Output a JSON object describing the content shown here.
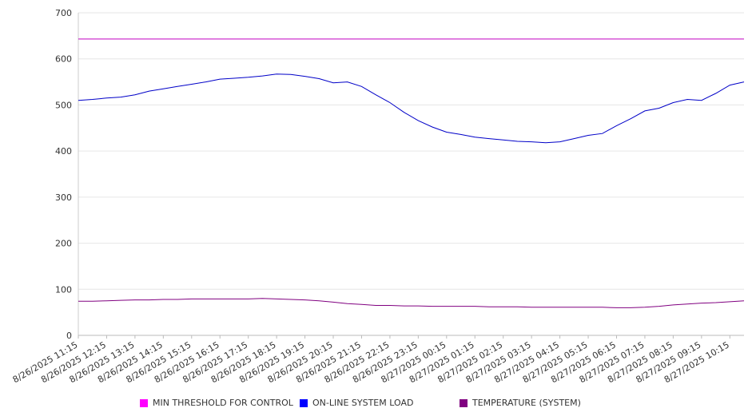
{
  "chart_data": {
    "type": "line",
    "title": "",
    "xlabel": "",
    "ylabel": "",
    "ylim": [
      0,
      700
    ],
    "y_ticks": [
      0,
      100,
      200,
      300,
      400,
      500,
      600,
      700
    ],
    "grid": "horizontal",
    "legend_position": "bottom",
    "x_tick_labels": [
      "8/26/2025 11:15",
      "8/26/2025 12:15",
      "8/26/2025 13:15",
      "8/26/2025 14:15",
      "8/26/2025 15:15",
      "8/26/2025 16:15",
      "8/26/2025 17:15",
      "8/26/2025 18:15",
      "8/26/2025 19:15",
      "8/26/2025 20:15",
      "8/26/2025 21:15",
      "8/26/2025 22:15",
      "8/26/2025 23:15",
      "8/27/2025 00:15",
      "8/27/2025 01:15",
      "8/27/2025 02:15",
      "8/27/2025 03:15",
      "8/27/2025 04:15",
      "8/27/2025 05:15",
      "8/27/2025 06:15",
      "8/27/2025 07:15",
      "8/27/2025 08:15",
      "8/27/2025 09:15",
      "8/27/2025 10:15"
    ],
    "x": [
      "8/26/2025 11:15",
      "8/26/2025 11:45",
      "8/26/2025 12:15",
      "8/26/2025 12:45",
      "8/26/2025 13:15",
      "8/26/2025 13:45",
      "8/26/2025 14:15",
      "8/26/2025 14:45",
      "8/26/2025 15:15",
      "8/26/2025 15:45",
      "8/26/2025 16:15",
      "8/26/2025 16:45",
      "8/26/2025 17:15",
      "8/26/2025 17:45",
      "8/26/2025 18:15",
      "8/26/2025 18:45",
      "8/26/2025 19:15",
      "8/26/2025 19:45",
      "8/26/2025 20:15",
      "8/26/2025 20:45",
      "8/26/2025 21:15",
      "8/26/2025 21:45",
      "8/26/2025 22:15",
      "8/26/2025 22:45",
      "8/26/2025 23:15",
      "8/26/2025 23:45",
      "8/27/2025 00:15",
      "8/27/2025 00:45",
      "8/27/2025 01:15",
      "8/27/2025 01:45",
      "8/27/2025 02:15",
      "8/27/2025 02:45",
      "8/27/2025 03:15",
      "8/27/2025 03:45",
      "8/27/2025 04:15",
      "8/27/2025 04:45",
      "8/27/2025 05:15",
      "8/27/2025 05:45",
      "8/27/2025 06:15",
      "8/27/2025 06:45",
      "8/27/2025 07:15",
      "8/27/2025 07:45",
      "8/27/2025 08:15",
      "8/27/2025 08:45",
      "8/27/2025 09:15",
      "8/27/2025 09:45",
      "8/27/2025 10:15",
      "8/27/2025 10:45"
    ],
    "series": [
      {
        "name": "MIN THRESHOLD FOR CONTROL",
        "color": "#c000c0",
        "values": [
          643,
          643,
          643,
          643,
          643,
          643,
          643,
          643,
          643,
          643,
          643,
          643,
          643,
          643,
          643,
          643,
          643,
          643,
          643,
          643,
          643,
          643,
          643,
          643,
          643,
          643,
          643,
          643,
          643,
          643,
          643,
          643,
          643,
          643,
          643,
          643,
          643,
          643,
          643,
          643,
          643,
          643,
          643,
          643,
          643,
          643,
          643,
          643
        ]
      },
      {
        "name": "ON-LINE SYSTEM LOAD",
        "color": "#0000c8",
        "values": [
          510,
          512,
          515,
          517,
          522,
          530,
          535,
          540,
          545,
          550,
          556,
          558,
          560,
          563,
          567,
          566,
          562,
          557,
          548,
          550,
          540,
          522,
          505,
          484,
          466,
          452,
          441,
          436,
          430,
          427,
          424,
          421,
          420,
          418,
          420,
          427,
          434,
          438,
          455,
          470,
          487,
          493,
          505,
          512,
          510,
          525,
          543,
          550
        ]
      },
      {
        "name": "TEMPERATURE (SYSTEM)",
        "color": "#800080",
        "values": [
          74,
          74,
          75,
          76,
          77,
          77,
          78,
          78,
          79,
          79,
          79,
          79,
          79,
          80,
          79,
          78,
          77,
          75,
          72,
          69,
          67,
          65,
          65,
          64,
          64,
          63,
          63,
          63,
          63,
          62,
          62,
          62,
          61,
          61,
          61,
          61,
          61,
          61,
          60,
          60,
          61,
          63,
          66,
          68,
          70,
          71,
          73,
          75
        ]
      }
    ]
  }
}
